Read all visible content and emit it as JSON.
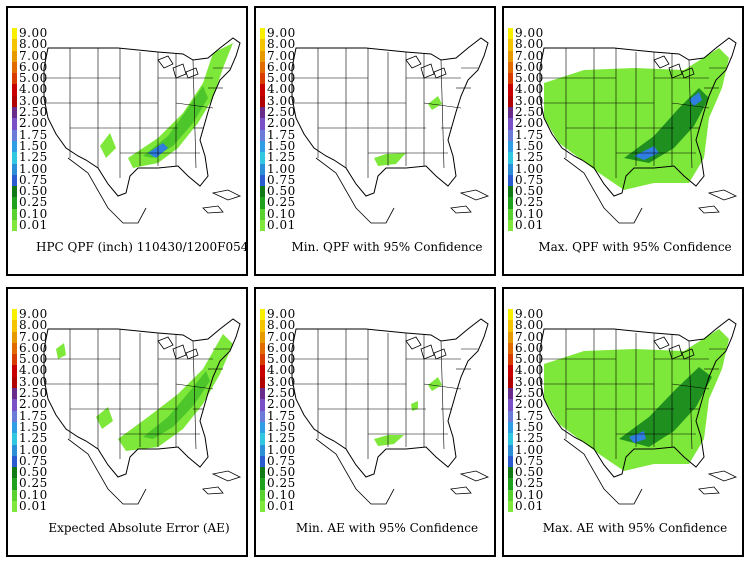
{
  "legend": {
    "levels": [
      "9.00",
      "8.00",
      "7.00",
      "6.00",
      "5.00",
      "4.00",
      "3.00",
      "2.50",
      "2.00",
      "1.75",
      "1.50",
      "1.25",
      "1.00",
      "0.75",
      "0.50",
      "0.25",
      "0.10",
      "0.01"
    ],
    "colors": [
      "#f9f000",
      "#f5c400",
      "#e69a00",
      "#e36a00",
      "#d83c00",
      "#c80000",
      "#b00000",
      "#6a2a8a",
      "#7a50c8",
      "#6b7cd8",
      "#2f9ee6",
      "#2fc8e0",
      "#2b8fd8",
      "#2b5bd0",
      "#117a17",
      "#1fa31f",
      "#59d12e",
      "#7fe83a"
    ]
  },
  "colors": {
    "light_green": "#7ee83a",
    "mid_green": "#4cc62a",
    "dark_green": "#1f8f1f",
    "blue": "#2f7ee0",
    "light_blue": "#5fbff0"
  },
  "panels": [
    {
      "caption": "HPC QPF (inch) 110430/1200F054"
    },
    {
      "caption": "Min. QPF with 95% Confidence"
    },
    {
      "caption": "Max. QPF with 95% Confidence"
    },
    {
      "caption": "Expected Absolute Error (AE)"
    },
    {
      "caption": "Min. AE with 95% Confidence"
    },
    {
      "caption": "Max. AE with 95% Confidence"
    }
  ]
}
